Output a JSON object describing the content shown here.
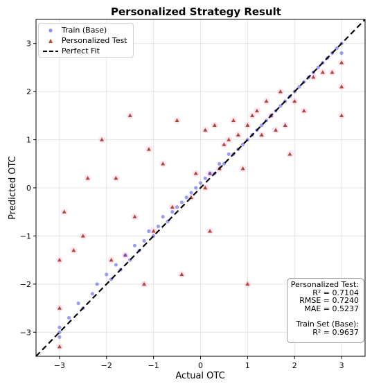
{
  "chart_data": {
    "type": "scatter",
    "title": "Personalized Strategy Result",
    "xlabel": "Actual OTC",
    "ylabel": "Predicted OTC",
    "xlim": [
      -3.5,
      3.5
    ],
    "ylim": [
      -3.5,
      3.5
    ],
    "xticks": [
      -3,
      -2,
      -1,
      0,
      1,
      2,
      3
    ],
    "yticks": [
      -3,
      -2,
      -1,
      0,
      1,
      2,
      3
    ],
    "tick_labels": [
      "−3",
      "−2",
      "−1",
      "0",
      "1",
      "2",
      "3"
    ],
    "grid": true,
    "legend_position": "top-left",
    "series": [
      {
        "name": "Train (Base)",
        "marker": "circle",
        "color": "#5b5bf0",
        "points": [
          [
            -3,
            -2.9
          ],
          [
            -3,
            -3.1
          ],
          [
            -3,
            -3.0
          ],
          [
            -2.8,
            -2.7
          ],
          [
            -2.6,
            -2.4
          ],
          [
            -2.5,
            -2.5
          ],
          [
            -2.3,
            -2.2
          ],
          [
            -2.2,
            -2.0
          ],
          [
            -2.0,
            -1.8
          ],
          [
            -1.9,
            -1.9
          ],
          [
            -1.8,
            -1.6
          ],
          [
            -1.7,
            -1.7
          ],
          [
            -1.6,
            -1.4
          ],
          [
            -1.5,
            -1.5
          ],
          [
            -1.4,
            -1.2
          ],
          [
            -1.3,
            -1.3
          ],
          [
            -1.2,
            -1.1
          ],
          [
            -1.1,
            -0.9
          ],
          [
            -1.0,
            -1.0
          ],
          [
            -0.9,
            -0.8
          ],
          [
            -0.8,
            -0.6
          ],
          [
            -0.7,
            -0.7
          ],
          [
            -0.6,
            -0.5
          ],
          [
            -0.5,
            -0.4
          ],
          [
            -0.4,
            -0.3
          ],
          [
            -0.3,
            -0.2
          ],
          [
            -0.2,
            -0.1
          ],
          [
            -0.1,
            0.0
          ],
          [
            0.0,
            0.1
          ],
          [
            0.1,
            0.2
          ],
          [
            0.2,
            0.3
          ],
          [
            0.3,
            0.3
          ],
          [
            0.4,
            0.5
          ],
          [
            0.5,
            0.5
          ],
          [
            0.6,
            0.7
          ],
          [
            0.7,
            0.7
          ],
          [
            0.8,
            0.8
          ],
          [
            0.9,
            0.9
          ],
          [
            1.0,
            1.0
          ],
          [
            1.1,
            1.1
          ],
          [
            1.2,
            1.2
          ],
          [
            1.3,
            1.3
          ],
          [
            1.4,
            1.4
          ],
          [
            1.5,
            1.5
          ],
          [
            1.6,
            1.6
          ],
          [
            1.7,
            1.7
          ],
          [
            1.8,
            1.8
          ],
          [
            1.9,
            1.9
          ],
          [
            2.0,
            2.0
          ],
          [
            2.1,
            2.1
          ],
          [
            2.2,
            2.2
          ],
          [
            2.3,
            2.3
          ],
          [
            2.4,
            2.4
          ],
          [
            2.5,
            2.5
          ],
          [
            2.6,
            2.6
          ],
          [
            2.7,
            2.7
          ],
          [
            2.8,
            2.8
          ],
          [
            2.9,
            2.9
          ],
          [
            3.0,
            3.0
          ],
          [
            3.0,
            2.8
          ]
        ]
      },
      {
        "name": "Personalized Test",
        "marker": "triangle",
        "color": "#b5472a",
        "points": [
          [
            -3,
            -3.3
          ],
          [
            -3,
            -2.5
          ],
          [
            -3,
            -1.5
          ],
          [
            -2.9,
            -0.5
          ],
          [
            -2.7,
            -1.3
          ],
          [
            -2.5,
            -1.0
          ],
          [
            -2.4,
            0.2
          ],
          [
            -2.1,
            1.0
          ],
          [
            -1.9,
            -1.5
          ],
          [
            -1.8,
            0.2
          ],
          [
            -1.6,
            -1.4
          ],
          [
            -1.5,
            1.5
          ],
          [
            -1.4,
            -0.6
          ],
          [
            -1.2,
            -2.0
          ],
          [
            -1.1,
            0.8
          ],
          [
            -1.0,
            -0.9
          ],
          [
            -0.8,
            0.5
          ],
          [
            -0.6,
            -0.4
          ],
          [
            -0.5,
            1.4
          ],
          [
            -0.4,
            -1.8
          ],
          [
            -0.2,
            -0.2
          ],
          [
            -0.1,
            0.3
          ],
          [
            0.1,
            0.0
          ],
          [
            0.1,
            1.2
          ],
          [
            0.2,
            0.3
          ],
          [
            0.2,
            -0.9
          ],
          [
            0.3,
            1.3
          ],
          [
            0.4,
            0.4
          ],
          [
            0.5,
            0.9
          ],
          [
            0.6,
            1.0
          ],
          [
            0.7,
            1.4
          ],
          [
            0.8,
            1.1
          ],
          [
            0.9,
            0.4
          ],
          [
            1.0,
            1.3
          ],
          [
            1.0,
            -2.0
          ],
          [
            1.1,
            1.5
          ],
          [
            1.2,
            1.6
          ],
          [
            1.3,
            1.1
          ],
          [
            1.4,
            1.8
          ],
          [
            1.5,
            1.5
          ],
          [
            1.6,
            1.2
          ],
          [
            1.7,
            2.0
          ],
          [
            1.8,
            1.3
          ],
          [
            1.9,
            0.7
          ],
          [
            2.0,
            1.8
          ],
          [
            2.2,
            1.6
          ],
          [
            2.4,
            2.3
          ],
          [
            2.6,
            2.4
          ],
          [
            2.8,
            2.4
          ],
          [
            3.0,
            2.6
          ],
          [
            3.0,
            2.1
          ],
          [
            3.0,
            1.5
          ]
        ]
      },
      {
        "name": "Perfect Fit",
        "marker": "dashed-line",
        "color": "#000000",
        "points": [
          [
            -3.5,
            -3.5
          ],
          [
            3.5,
            3.5
          ]
        ]
      }
    ]
  },
  "stats": {
    "personalized_header": "Personalized Test:",
    "personalized_r2": "R² = 0.7104",
    "personalized_rmse": "RMSE = 0.7240",
    "personalized_mae": "MAE = 0.5237",
    "train_header": "Train Set (Base):",
    "train_r2": "R² = 0.9637"
  }
}
